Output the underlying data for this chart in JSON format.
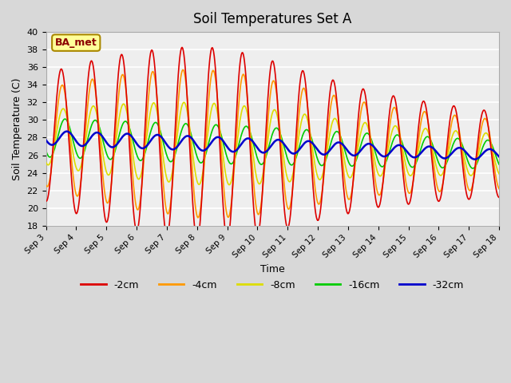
{
  "title": "Soil Temperatures Set A",
  "xlabel": "Time",
  "ylabel": "Soil Temperature (C)",
  "ylim": [
    18,
    40
  ],
  "yticks": [
    18,
    20,
    22,
    24,
    26,
    28,
    30,
    32,
    34,
    36,
    38,
    40
  ],
  "x_labels": [
    "Sep 3",
    "Sep 4",
    "Sep 5",
    "Sep 6",
    "Sep 7",
    "Sep 8",
    "Sep 9",
    "Sep 10",
    "Sep 11",
    "Sep 12",
    "Sep 13",
    "Sep 14",
    "Sep 15",
    "Sep 16",
    "Sep 17",
    "Sep 18"
  ],
  "colors": {
    "-2cm": "#dd0000",
    "-4cm": "#ff9900",
    "-8cm": "#dddd00",
    "-16cm": "#00cc00",
    "-32cm": "#0000cc"
  },
  "legend_label": "BA_met",
  "legend_box_facecolor": "#ffff99",
  "legend_box_edgecolor": "#aa8800",
  "fig_facecolor": "#d8d8d8",
  "ax_facecolor": "#eeeeee",
  "grid_color": "#ffffff"
}
